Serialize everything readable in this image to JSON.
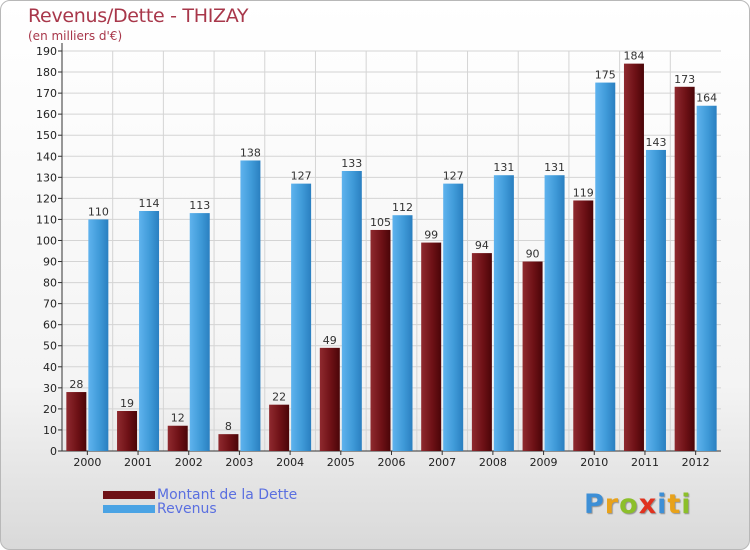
{
  "title": "Revenus/Dette - THIZAY",
  "subtitle": "(en milliers d'€)",
  "colors": {
    "dette": "#6e1116",
    "revenus": "#3f9ad8",
    "text_accent": "#a8374a"
  },
  "legend": [
    {
      "label": "Montant de la Dette",
      "color": "#6e1116"
    },
    {
      "label": "Revenus",
      "color": "#4aa3e4"
    }
  ],
  "logo": {
    "letters": [
      "P",
      "r",
      "o",
      "x",
      "i",
      "t",
      "i"
    ]
  },
  "chart_data": {
    "type": "bar",
    "categories": [
      "2000",
      "2001",
      "2002",
      "2003",
      "2004",
      "2005",
      "2006",
      "2007",
      "2008",
      "2009",
      "2010",
      "2011",
      "2012"
    ],
    "series": [
      {
        "name": "Montant de la Dette",
        "values": [
          28,
          19,
          12,
          8,
          22,
          49,
          105,
          99,
          94,
          90,
          119,
          184,
          173
        ]
      },
      {
        "name": "Revenus",
        "values": [
          110,
          114,
          113,
          138,
          127,
          133,
          112,
          127,
          131,
          131,
          175,
          143,
          164
        ]
      }
    ],
    "ylim": [
      0,
      190
    ],
    "yticks": [
      0,
      10,
      20,
      30,
      40,
      50,
      60,
      70,
      80,
      90,
      100,
      110,
      120,
      130,
      140,
      150,
      160,
      170,
      180,
      190
    ],
    "grid": true,
    "legend_position": "bottom-left"
  }
}
